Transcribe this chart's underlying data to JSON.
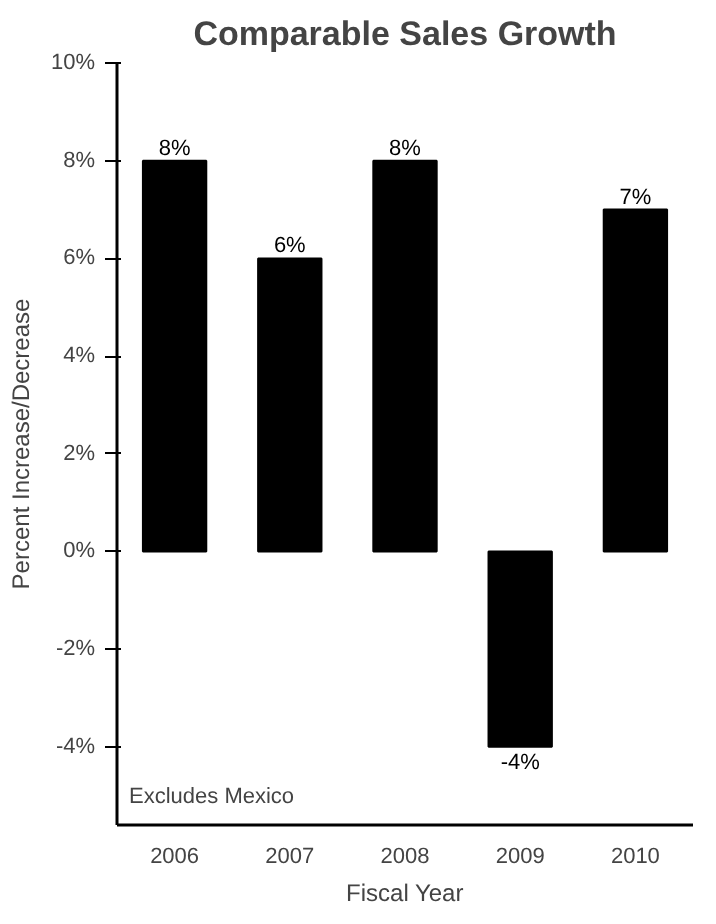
{
  "chart_data": {
    "type": "bar",
    "title": "Comparable Sales Growth",
    "xlabel": "Fiscal Year",
    "ylabel": "Percent Increase/Decrease",
    "categories": [
      "2006",
      "2007",
      "2008",
      "2009",
      "2010"
    ],
    "values": [
      8,
      6,
      8,
      -4,
      7
    ],
    "color": "#000000",
    "value_labels": [
      "8%",
      "6%",
      "8%",
      "-4%",
      "7%"
    ],
    "ylim": [
      -5.6,
      10
    ],
    "yticks": [
      {
        "value": -4,
        "label": "-4%"
      },
      {
        "value": -2,
        "label": "-2%"
      },
      {
        "value": 0,
        "label": "0%"
      },
      {
        "value": 2,
        "label": "2%"
      },
      {
        "value": 4,
        "label": "4%"
      },
      {
        "value": 6,
        "label": "6%"
      },
      {
        "value": 8,
        "label": "8%"
      },
      {
        "value": 10,
        "label": "10%"
      }
    ],
    "grid": false,
    "annotations": [
      "Excludes Mexico"
    ]
  }
}
